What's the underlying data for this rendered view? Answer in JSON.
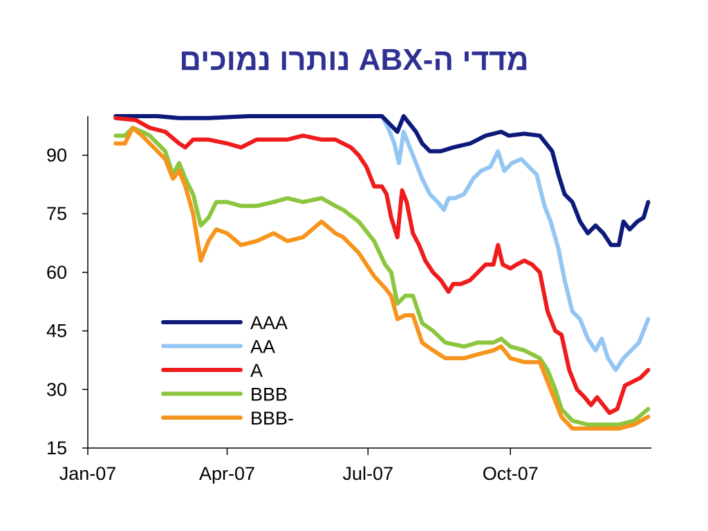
{
  "slide": {
    "title": "מדדי ה-ABX נותרו נמוכים"
  },
  "chart_data": {
    "type": "line",
    "title": "מדדי ה-ABX נותרו נמוכים",
    "xlabel": "",
    "ylabel": "",
    "ylim": [
      15,
      100
    ],
    "yticks": [
      90,
      75,
      60,
      45,
      30,
      15
    ],
    "xlim": [
      "2007-01-01",
      "2007-12-31"
    ],
    "xticks": [
      "Jan-07",
      "Apr-07",
      "Jul-07",
      "Oct-07"
    ],
    "xtick_dates": [
      "2007-01-01",
      "2007-04-01",
      "2007-07-01",
      "2007-10-01"
    ],
    "grid": false,
    "legend_position": "lower-left",
    "series": [
      {
        "name": "AAA",
        "color": "#0D1A7A",
        "points": [
          [
            "2007-01-19",
            100
          ],
          [
            "2007-02-15",
            100
          ],
          [
            "2007-03-01",
            99.5
          ],
          [
            "2007-03-20",
            99.5
          ],
          [
            "2007-04-15",
            100
          ],
          [
            "2007-05-15",
            100
          ],
          [
            "2007-06-15",
            100
          ],
          [
            "2007-07-10",
            100
          ],
          [
            "2007-07-15",
            98
          ],
          [
            "2007-07-20",
            96
          ],
          [
            "2007-07-24",
            100
          ],
          [
            "2007-07-28",
            98
          ],
          [
            "2007-08-01",
            96
          ],
          [
            "2007-08-05",
            93
          ],
          [
            "2007-08-10",
            91
          ],
          [
            "2007-08-17",
            91
          ],
          [
            "2007-08-25",
            92
          ],
          [
            "2007-09-05",
            93
          ],
          [
            "2007-09-15",
            95
          ],
          [
            "2007-09-25",
            96
          ],
          [
            "2007-09-30",
            95
          ],
          [
            "2007-10-10",
            95.5
          ],
          [
            "2007-10-20",
            95
          ],
          [
            "2007-10-28",
            91
          ],
          [
            "2007-11-01",
            85
          ],
          [
            "2007-11-05",
            80
          ],
          [
            "2007-11-10",
            78
          ],
          [
            "2007-11-15",
            73
          ],
          [
            "2007-11-20",
            70
          ],
          [
            "2007-11-25",
            72
          ],
          [
            "2007-11-30",
            70
          ],
          [
            "2007-12-05",
            67
          ],
          [
            "2007-12-10",
            67
          ],
          [
            "2007-12-13",
            73
          ],
          [
            "2007-12-17",
            71
          ],
          [
            "2007-12-22",
            73
          ],
          [
            "2007-12-26",
            74
          ],
          [
            "2007-12-29",
            78
          ]
        ]
      },
      {
        "name": "AA",
        "color": "#93C6F2",
        "points": [
          [
            "2007-01-19",
            100
          ],
          [
            "2007-02-15",
            100
          ],
          [
            "2007-03-01",
            99.5
          ],
          [
            "2007-03-20",
            99.5
          ],
          [
            "2007-04-15",
            100
          ],
          [
            "2007-05-15",
            100
          ],
          [
            "2007-06-15",
            100
          ],
          [
            "2007-07-10",
            100
          ],
          [
            "2007-07-14",
            97
          ],
          [
            "2007-07-18",
            93
          ],
          [
            "2007-07-21",
            88
          ],
          [
            "2007-07-24",
            96
          ],
          [
            "2007-07-28",
            92
          ],
          [
            "2007-08-01",
            88
          ],
          [
            "2007-08-05",
            84
          ],
          [
            "2007-08-10",
            80
          ],
          [
            "2007-08-15",
            78
          ],
          [
            "2007-08-19",
            76
          ],
          [
            "2007-08-22",
            79
          ],
          [
            "2007-08-26",
            79
          ],
          [
            "2007-09-01",
            80
          ],
          [
            "2007-09-07",
            84
          ],
          [
            "2007-09-12",
            86
          ],
          [
            "2007-09-18",
            87
          ],
          [
            "2007-09-23",
            91
          ],
          [
            "2007-09-27",
            86
          ],
          [
            "2007-10-02",
            88
          ],
          [
            "2007-10-08",
            89
          ],
          [
            "2007-10-13",
            87
          ],
          [
            "2007-10-18",
            85
          ],
          [
            "2007-10-23",
            77
          ],
          [
            "2007-10-27",
            73
          ],
          [
            "2007-11-01",
            66
          ],
          [
            "2007-11-05",
            58
          ],
          [
            "2007-11-10",
            50
          ],
          [
            "2007-11-15",
            48
          ],
          [
            "2007-11-20",
            43
          ],
          [
            "2007-11-25",
            40
          ],
          [
            "2007-11-29",
            43
          ],
          [
            "2007-12-03",
            38
          ],
          [
            "2007-12-08",
            35
          ],
          [
            "2007-12-13",
            38
          ],
          [
            "2007-12-18",
            40
          ],
          [
            "2007-12-23",
            42
          ],
          [
            "2007-12-29",
            48
          ]
        ]
      },
      {
        "name": "A",
        "color": "#EE1C1C",
        "points": [
          [
            "2007-01-19",
            99.5
          ],
          [
            "2007-02-01",
            99
          ],
          [
            "2007-02-10",
            97
          ],
          [
            "2007-02-20",
            96
          ],
          [
            "2007-03-01",
            93
          ],
          [
            "2007-03-05",
            92
          ],
          [
            "2007-03-10",
            94
          ],
          [
            "2007-03-20",
            94
          ],
          [
            "2007-04-01",
            93
          ],
          [
            "2007-04-10",
            92
          ],
          [
            "2007-04-20",
            94
          ],
          [
            "2007-05-01",
            94
          ],
          [
            "2007-05-10",
            94
          ],
          [
            "2007-05-20",
            95
          ],
          [
            "2007-06-01",
            94
          ],
          [
            "2007-06-10",
            94
          ],
          [
            "2007-06-20",
            92
          ],
          [
            "2007-06-25",
            90
          ],
          [
            "2007-06-30",
            87
          ],
          [
            "2007-07-05",
            82
          ],
          [
            "2007-07-10",
            82
          ],
          [
            "2007-07-13",
            80
          ],
          [
            "2007-07-16",
            74
          ],
          [
            "2007-07-20",
            69
          ],
          [
            "2007-07-23",
            81
          ],
          [
            "2007-07-26",
            78
          ],
          [
            "2007-07-30",
            70
          ],
          [
            "2007-08-03",
            67
          ],
          [
            "2007-08-07",
            63
          ],
          [
            "2007-08-12",
            60
          ],
          [
            "2007-08-17",
            58
          ],
          [
            "2007-08-22",
            55
          ],
          [
            "2007-08-25",
            57
          ],
          [
            "2007-08-30",
            57
          ],
          [
            "2007-09-05",
            58
          ],
          [
            "2007-09-10",
            60
          ],
          [
            "2007-09-15",
            62
          ],
          [
            "2007-09-20",
            62
          ],
          [
            "2007-09-23",
            67
          ],
          [
            "2007-09-26",
            62
          ],
          [
            "2007-10-01",
            61
          ],
          [
            "2007-10-05",
            62
          ],
          [
            "2007-10-10",
            63
          ],
          [
            "2007-10-15",
            62
          ],
          [
            "2007-10-20",
            60
          ],
          [
            "2007-10-25",
            50
          ],
          [
            "2007-10-30",
            45
          ],
          [
            "2007-11-03",
            44
          ],
          [
            "2007-11-08",
            35
          ],
          [
            "2007-11-13",
            30
          ],
          [
            "2007-11-18",
            28
          ],
          [
            "2007-11-22",
            26
          ],
          [
            "2007-11-26",
            28
          ],
          [
            "2007-11-30",
            26
          ],
          [
            "2007-12-04",
            24
          ],
          [
            "2007-12-09",
            25
          ],
          [
            "2007-12-14",
            31
          ],
          [
            "2007-12-19",
            32
          ],
          [
            "2007-12-24",
            33
          ],
          [
            "2007-12-29",
            35
          ]
        ]
      },
      {
        "name": "BBB",
        "color": "#8CC63F",
        "points": [
          [
            "2007-01-19",
            95
          ],
          [
            "2007-01-25",
            95
          ],
          [
            "2007-01-30",
            97
          ],
          [
            "2007-02-05",
            96
          ],
          [
            "2007-02-10",
            95
          ],
          [
            "2007-02-15",
            93
          ],
          [
            "2007-02-20",
            91
          ],
          [
            "2007-02-25",
            85
          ],
          [
            "2007-03-01",
            88
          ],
          [
            "2007-03-05",
            84
          ],
          [
            "2007-03-10",
            80
          ],
          [
            "2007-03-15",
            72
          ],
          [
            "2007-03-20",
            74
          ],
          [
            "2007-03-25",
            78
          ],
          [
            "2007-04-01",
            78
          ],
          [
            "2007-04-10",
            77
          ],
          [
            "2007-04-20",
            77
          ],
          [
            "2007-05-01",
            78
          ],
          [
            "2007-05-10",
            79
          ],
          [
            "2007-05-20",
            78
          ],
          [
            "2007-06-01",
            79
          ],
          [
            "2007-06-10",
            77
          ],
          [
            "2007-06-15",
            76
          ],
          [
            "2007-06-25",
            73
          ],
          [
            "2007-07-05",
            68
          ],
          [
            "2007-07-12",
            62
          ],
          [
            "2007-07-16",
            60
          ],
          [
            "2007-07-20",
            52
          ],
          [
            "2007-07-25",
            54
          ],
          [
            "2007-07-30",
            54
          ],
          [
            "2007-08-05",
            47
          ],
          [
            "2007-08-12",
            45
          ],
          [
            "2007-08-20",
            42
          ],
          [
            "2007-09-01",
            41
          ],
          [
            "2007-09-10",
            42
          ],
          [
            "2007-09-20",
            42
          ],
          [
            "2007-09-25",
            43
          ],
          [
            "2007-10-01",
            41
          ],
          [
            "2007-10-10",
            40
          ],
          [
            "2007-10-20",
            38
          ],
          [
            "2007-10-25",
            35
          ],
          [
            "2007-10-30",
            30
          ],
          [
            "2007-11-03",
            25
          ],
          [
            "2007-11-10",
            22
          ],
          [
            "2007-11-20",
            21
          ],
          [
            "2007-11-30",
            21
          ],
          [
            "2007-12-10",
            21
          ],
          [
            "2007-12-20",
            22
          ],
          [
            "2007-12-29",
            25
          ]
        ]
      },
      {
        "name": "BBB-",
        "color": "#F7941D",
        "points": [
          [
            "2007-01-19",
            93
          ],
          [
            "2007-01-25",
            93
          ],
          [
            "2007-01-30",
            97
          ],
          [
            "2007-02-05",
            95
          ],
          [
            "2007-02-10",
            93
          ],
          [
            "2007-02-15",
            91
          ],
          [
            "2007-02-20",
            89
          ],
          [
            "2007-02-25",
            84
          ],
          [
            "2007-03-01",
            86
          ],
          [
            "2007-03-05",
            82
          ],
          [
            "2007-03-10",
            75
          ],
          [
            "2007-03-15",
            63
          ],
          [
            "2007-03-20",
            68
          ],
          [
            "2007-03-25",
            71
          ],
          [
            "2007-04-01",
            70
          ],
          [
            "2007-04-10",
            67
          ],
          [
            "2007-04-20",
            68
          ],
          [
            "2007-05-01",
            70
          ],
          [
            "2007-05-10",
            68
          ],
          [
            "2007-05-20",
            69
          ],
          [
            "2007-06-01",
            73
          ],
          [
            "2007-06-10",
            70
          ],
          [
            "2007-06-15",
            69
          ],
          [
            "2007-06-25",
            65
          ],
          [
            "2007-07-05",
            59
          ],
          [
            "2007-07-12",
            56
          ],
          [
            "2007-07-16",
            54
          ],
          [
            "2007-07-20",
            48
          ],
          [
            "2007-07-25",
            49
          ],
          [
            "2007-07-30",
            49
          ],
          [
            "2007-08-05",
            42
          ],
          [
            "2007-08-12",
            40
          ],
          [
            "2007-08-20",
            38
          ],
          [
            "2007-09-01",
            38
          ],
          [
            "2007-09-10",
            39
          ],
          [
            "2007-09-20",
            40
          ],
          [
            "2007-09-25",
            41
          ],
          [
            "2007-10-01",
            38
          ],
          [
            "2007-10-10",
            37
          ],
          [
            "2007-10-20",
            37
          ],
          [
            "2007-10-25",
            32
          ],
          [
            "2007-10-30",
            27
          ],
          [
            "2007-11-03",
            23
          ],
          [
            "2007-11-10",
            20
          ],
          [
            "2007-11-20",
            20
          ],
          [
            "2007-11-30",
            20
          ],
          [
            "2007-12-10",
            20
          ],
          [
            "2007-12-20",
            21
          ],
          [
            "2007-12-29",
            23
          ]
        ]
      }
    ]
  }
}
